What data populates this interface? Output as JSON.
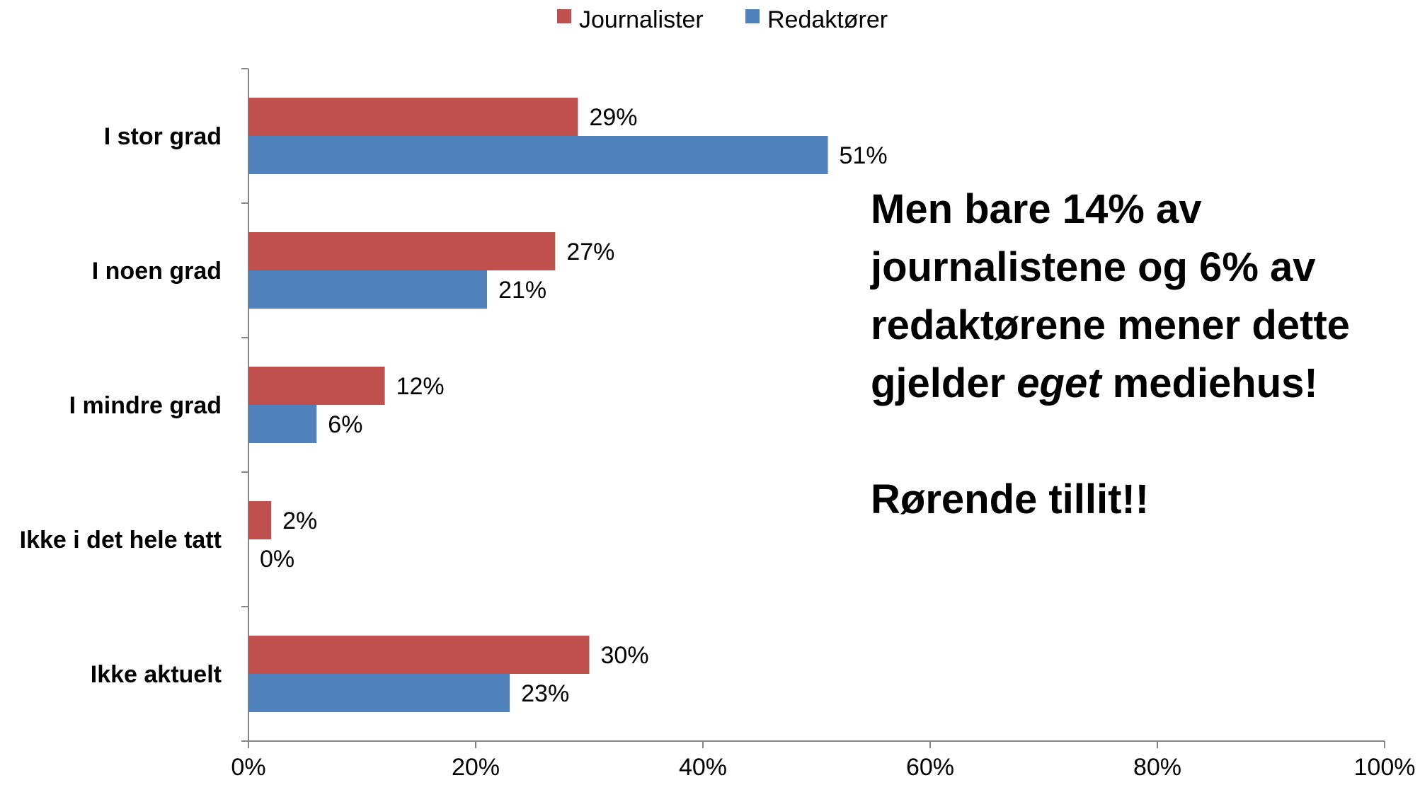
{
  "chart_data": {
    "type": "bar",
    "orientation": "horizontal",
    "categories": [
      "I stor grad",
      "I noen grad",
      "I mindre grad",
      "Ikke i det hele tatt",
      "Ikke aktuelt"
    ],
    "series": [
      {
        "name": "Journalister",
        "color": "#C0504D",
        "values": [
          29,
          27,
          12,
          2,
          30
        ],
        "labels": [
          "29%",
          "27%",
          "12%",
          "2%",
          "30%"
        ]
      },
      {
        "name": "Redaktører",
        "color": "#4F81BD",
        "values": [
          51,
          21,
          6,
          0,
          23
        ],
        "labels": [
          "51%",
          "21%",
          "6%",
          "0%",
          "23%"
        ]
      }
    ],
    "xlim": [
      0,
      100
    ],
    "xticks": [
      "0%",
      "20%",
      "40%",
      "60%",
      "80%",
      "100%"
    ],
    "legend_position": "top",
    "grid": false
  },
  "annotation": {
    "line1_prefix": "Men bare 14% av",
    "line2": "journalistene og 6% av",
    "line3": "redaktørene mener dette",
    "line4_before": "gjelder ",
    "line4_emph": "eget",
    "line4_after": " mediehus!",
    "line5": "Rørende tillit!!"
  }
}
